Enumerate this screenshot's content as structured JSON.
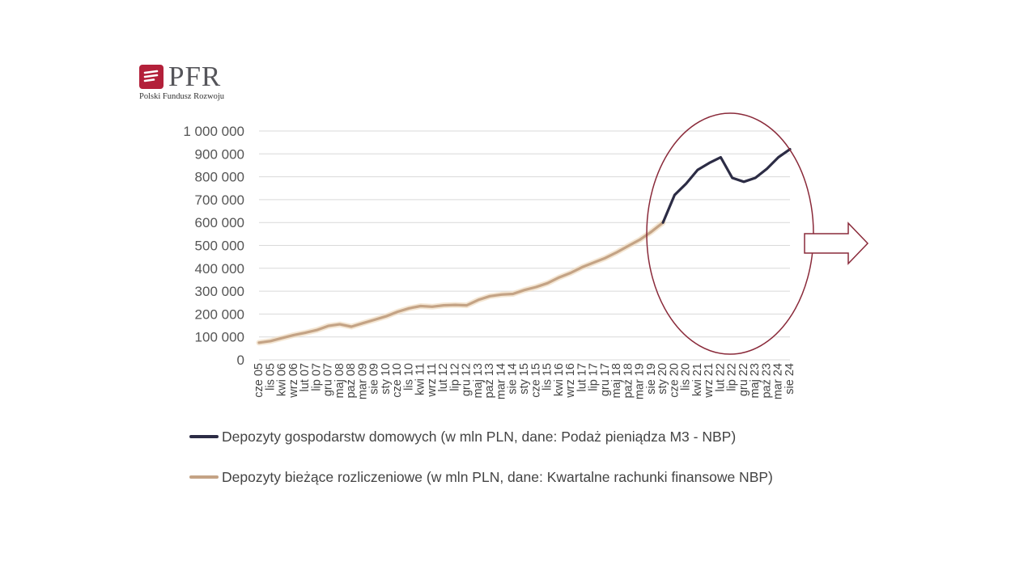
{
  "logo": {
    "name": "PFR",
    "subtitle": "Polski Fundusz Rozwoju",
    "brand_color": "#b3203a"
  },
  "chart_data": {
    "type": "line",
    "title": "",
    "xlabel": "",
    "ylabel": "",
    "ylim": [
      0,
      1000000
    ],
    "y_ticks": [
      0,
      100000,
      200000,
      300000,
      400000,
      500000,
      600000,
      700000,
      800000,
      900000,
      1000000
    ],
    "y_tick_labels": [
      "0",
      "100 000",
      "200 000",
      "300 000",
      "400 000",
      "500 000",
      "600 000",
      "700 000",
      "800 000",
      "900 000",
      "1 000 000"
    ],
    "grid": true,
    "legend_position": "bottom",
    "x_tick_labels": [
      "cze 05",
      "lis 05",
      "kwi 06",
      "wrz 06",
      "lut 07",
      "lip 07",
      "gru 07",
      "maj 08",
      "paź 08",
      "mar 09",
      "sie 09",
      "sty 10",
      "cze 10",
      "lis 10",
      "kwi 11",
      "wrz 11",
      "lut 12",
      "lip 12",
      "gru 12",
      "maj 13",
      "paź 13",
      "mar 14",
      "sie 14",
      "sty 15",
      "cze 15",
      "lis 15",
      "kwi 16",
      "wrz 16",
      "lut 17",
      "lip 17",
      "gru 17",
      "maj 18",
      "paź 18",
      "mar 19",
      "sie 19",
      "sty 20",
      "cze 20",
      "lis 20",
      "kwi 21",
      "wrz 21",
      "lut 22",
      "lip 22",
      "gru 22",
      "maj 23",
      "paź 23",
      "mar 24",
      "sie 24"
    ],
    "series": [
      {
        "name": "Depozyty bieżące rozliczeniowe (w mln PLN, dane: Kwartalne rachunki finansowe NBP)",
        "color": "#c4a385",
        "x": [
          "cze 05",
          "lis 05",
          "kwi 06",
          "wrz 06",
          "lut 07",
          "lip 07",
          "gru 07",
          "maj 08",
          "paź 08",
          "mar 09",
          "sie 09",
          "sty 10",
          "cze 10",
          "lis 10",
          "kwi 11",
          "wrz 11",
          "lut 12",
          "lip 12",
          "gru 12",
          "maj 13",
          "paź 13",
          "mar 14",
          "sie 14",
          "sty 15",
          "cze 15",
          "lis 15",
          "kwi 16",
          "wrz 16",
          "lut 17",
          "lip 17",
          "gru 17",
          "maj 18",
          "paź 18",
          "mar 19",
          "sie 19",
          "sty 20"
        ],
        "values": [
          75000,
          82000,
          95000,
          108000,
          118000,
          130000,
          148000,
          155000,
          145000,
          160000,
          175000,
          190000,
          210000,
          225000,
          235000,
          232000,
          238000,
          240000,
          238000,
          262000,
          278000,
          285000,
          288000,
          305000,
          318000,
          335000,
          360000,
          380000,
          405000,
          425000,
          445000,
          470000,
          498000,
          525000,
          560000,
          600000
        ]
      },
      {
        "name": "Depozyty gospodarstw domowych (w mln PLN, dane: Podaż pieniądza M3 - NBP)",
        "color": "#2c2c45",
        "x": [
          "sty 20",
          "cze 20",
          "lis 20",
          "kwi 21",
          "wrz 21",
          "lut 22",
          "lip 22",
          "gru 22",
          "maj 23",
          "paź 23",
          "mar 24",
          "sie 24"
        ],
        "values": [
          600000,
          720000,
          770000,
          830000,
          860000,
          885000,
          795000,
          778000,
          795000,
          835000,
          885000,
          920000
        ]
      }
    ]
  },
  "legend": [
    {
      "label": "Depozyty gospodarstw domowych (w mln PLN, dane: Podaż pieniądza M3 - NBP)",
      "color": "#2c2c45"
    },
    {
      "label": "Depozyty bieżące rozliczeniowe (w mln PLN, dane: Kwartalne rachunki finansowe NBP)",
      "color": "#c4a385"
    }
  ],
  "annotations": {
    "ellipse_color": "#8a2a3a",
    "arrow_color": "#8a2a3a"
  }
}
